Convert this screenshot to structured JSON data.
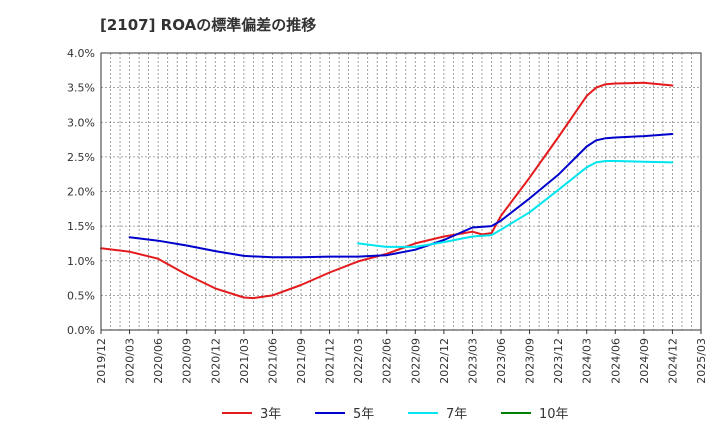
{
  "chart_data": {
    "type": "line",
    "title": "[2107]  ROAの標準偏差の推移",
    "xlabel": "",
    "ylabel": "",
    "x_ticks": [
      "2019/12",
      "2020/03",
      "2020/06",
      "2020/09",
      "2020/12",
      "2021/03",
      "2021/06",
      "2021/09",
      "2021/12",
      "2022/03",
      "2022/06",
      "2022/09",
      "2022/12",
      "2023/03",
      "2023/06",
      "2023/09",
      "2023/12",
      "2024/03",
      "2024/06",
      "2024/09",
      "2024/12",
      "2025/03"
    ],
    "y_ticks": [
      "0.0%",
      "0.5%",
      "1.0%",
      "1.5%",
      "2.0%",
      "2.5%",
      "3.0%",
      "3.5%",
      "4.0%"
    ],
    "ylim": [
      0,
      4.0
    ],
    "grid": true,
    "legend_position": "bottom",
    "series": [
      {
        "name": "3年",
        "color": "#e41a1c",
        "points": [
          [
            "2019/12",
            1.18
          ],
          [
            "2020/03",
            1.13
          ],
          [
            "2020/06",
            1.03
          ],
          [
            "2020/09",
            0.8
          ],
          [
            "2020/12",
            0.6
          ],
          [
            "2021/03",
            0.47
          ],
          [
            "2021/04",
            0.46
          ],
          [
            "2021/06",
            0.5
          ],
          [
            "2021/09",
            0.65
          ],
          [
            "2021/12",
            0.83
          ],
          [
            "2022/03",
            0.99
          ],
          [
            "2022/06",
            1.1
          ],
          [
            "2022/09",
            1.25
          ],
          [
            "2022/12",
            1.35
          ],
          [
            "2023/03",
            1.42
          ],
          [
            "2023/04",
            1.38
          ],
          [
            "2023/05",
            1.4
          ],
          [
            "2023/06",
            1.65
          ],
          [
            "2023/09",
            2.2
          ],
          [
            "2023/12",
            2.78
          ],
          [
            "2024/03",
            3.38
          ],
          [
            "2024/04",
            3.5
          ],
          [
            "2024/05",
            3.55
          ],
          [
            "2024/06",
            3.56
          ],
          [
            "2024/09",
            3.57
          ],
          [
            "2024/12",
            3.53
          ]
        ]
      },
      {
        "name": "5年",
        "color": "#0000cc",
        "points": [
          [
            "2020/03",
            1.34
          ],
          [
            "2020/06",
            1.29
          ],
          [
            "2020/09",
            1.22
          ],
          [
            "2020/12",
            1.14
          ],
          [
            "2021/03",
            1.07
          ],
          [
            "2021/06",
            1.05
          ],
          [
            "2021/09",
            1.05
          ],
          [
            "2021/12",
            1.06
          ],
          [
            "2022/03",
            1.06
          ],
          [
            "2022/06",
            1.08
          ],
          [
            "2022/09",
            1.16
          ],
          [
            "2022/12",
            1.3
          ],
          [
            "2023/03",
            1.48
          ],
          [
            "2023/05",
            1.5
          ],
          [
            "2023/06",
            1.58
          ],
          [
            "2023/09",
            1.9
          ],
          [
            "2023/12",
            2.24
          ],
          [
            "2024/03",
            2.65
          ],
          [
            "2024/04",
            2.74
          ],
          [
            "2024/05",
            2.77
          ],
          [
            "2024/06",
            2.78
          ],
          [
            "2024/09",
            2.8
          ],
          [
            "2024/12",
            2.83
          ]
        ]
      },
      {
        "name": "7年",
        "color": "#00e5ee",
        "points": [
          [
            "2022/03",
            1.25
          ],
          [
            "2022/06",
            1.2
          ],
          [
            "2022/09",
            1.2
          ],
          [
            "2022/12",
            1.27
          ],
          [
            "2023/03",
            1.35
          ],
          [
            "2023/05",
            1.37
          ],
          [
            "2023/06",
            1.45
          ],
          [
            "2023/09",
            1.7
          ],
          [
            "2023/12",
            2.02
          ],
          [
            "2024/03",
            2.35
          ],
          [
            "2024/04",
            2.42
          ],
          [
            "2024/05",
            2.44
          ],
          [
            "2024/06",
            2.44
          ],
          [
            "2024/09",
            2.43
          ],
          [
            "2024/12",
            2.42
          ]
        ]
      },
      {
        "name": "10年",
        "color": "#008000",
        "points": []
      }
    ]
  }
}
